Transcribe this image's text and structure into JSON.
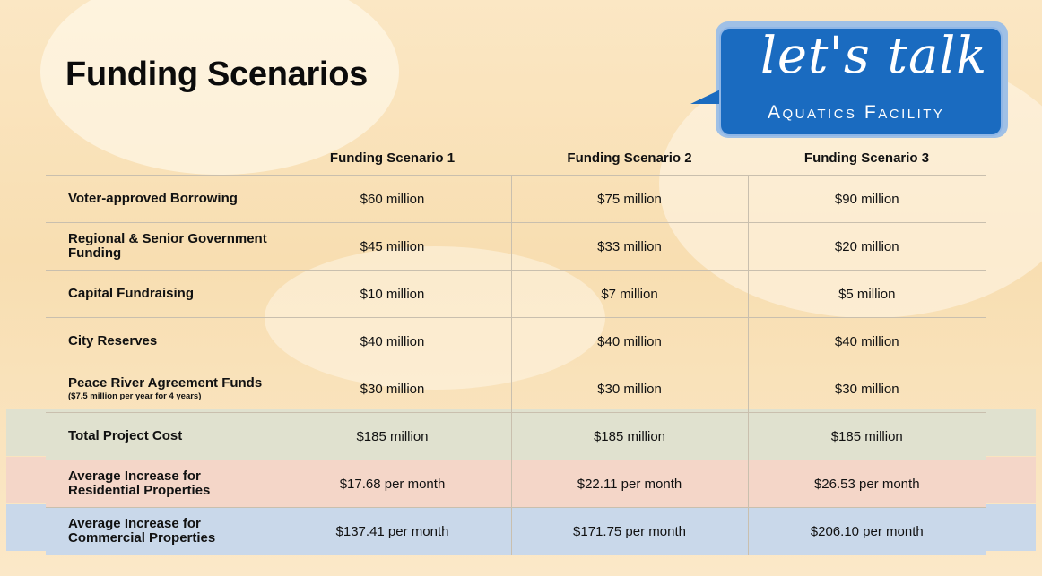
{
  "title": "Funding Scenarios",
  "logo": {
    "main": "let's talk",
    "sub": "Aquatics Facility"
  },
  "table": {
    "headers": [
      "",
      "Funding Scenario 1",
      "Funding Scenario 2",
      "Funding Scenario 3"
    ],
    "rows": [
      {
        "label": "Voter-approved Borrowing",
        "note": "",
        "values": [
          "$60 million",
          "$75 million",
          "$90 million"
        ]
      },
      {
        "label": "Regional & Senior Government Funding",
        "note": "",
        "values": [
          "$45 million",
          "$33 million",
          "$20 million"
        ]
      },
      {
        "label": "Capital Fundraising",
        "note": "",
        "values": [
          "$10 million",
          "$7 million",
          "$5 million"
        ]
      },
      {
        "label": "City Reserves",
        "note": "",
        "values": [
          "$40 million",
          "$40 million",
          "$40 million"
        ]
      },
      {
        "label": "Peace River Agreement Funds",
        "note": "($7.5 million per year for 4 years)",
        "values": [
          "$30 million",
          "$30 million",
          "$30 million"
        ]
      },
      {
        "label": "Total Project Cost",
        "note": "",
        "values": [
          "$185 million",
          "$185 million",
          "$185 million"
        ]
      },
      {
        "label": "Average Increase for Residential Properties",
        "note": "",
        "values": [
          "$17.68 per month",
          "$22.11 per month",
          "$26.53 per month"
        ]
      },
      {
        "label": "Average Increase for Commercial Properties",
        "note": "",
        "values": [
          "$137.41 per month",
          "$171.75 per month",
          "$206.10 per month"
        ]
      }
    ]
  },
  "colors": {
    "logo_blue": "#1a6bc0",
    "total_row": "#e0e1cf",
    "residential_row": "#f4d6c8",
    "commercial_row": "#c9d8ea"
  }
}
